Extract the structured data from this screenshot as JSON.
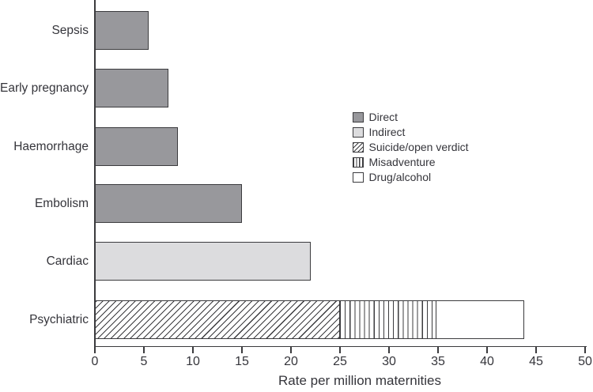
{
  "chart_data": {
    "type": "bar",
    "orientation": "horizontal",
    "stacked": true,
    "title": "",
    "xlabel": "Rate per million maternities",
    "ylabel": "",
    "xlim": [
      0,
      50
    ],
    "xticks": [
      0,
      5,
      10,
      15,
      20,
      25,
      30,
      35,
      40,
      45,
      50
    ],
    "grid": false,
    "legend_position": "middle-right",
    "categories": [
      "Sepsis",
      "Early pregnancy",
      "Haemorrhage",
      "Embolism",
      "Cardiac",
      "Psychiatric"
    ],
    "series": [
      {
        "name": "Direct",
        "pattern": "solid",
        "color": "#98989c",
        "values": [
          5.5,
          7.5,
          8.5,
          15,
          0,
          0
        ]
      },
      {
        "name": "Indirect",
        "pattern": "solid",
        "color": "#dcdcde",
        "values": [
          0,
          0,
          0,
          0,
          22,
          0
        ]
      },
      {
        "name": "Suicide/open verdict",
        "pattern": "diagonal-hatch",
        "color": "#ffffff",
        "values": [
          0,
          0,
          0,
          0,
          0,
          25
        ]
      },
      {
        "name": "Misadventure",
        "pattern": "vertical-stripes",
        "color": "#ffffff",
        "values": [
          0,
          0,
          0,
          0,
          0,
          10
        ]
      },
      {
        "name": "Drug/alcohol",
        "pattern": "plain-white",
        "color": "#ffffff",
        "values": [
          0,
          0,
          0,
          0,
          0,
          9
        ]
      }
    ],
    "category_totals": [
      5.5,
      7.5,
      8.5,
      15,
      22,
      44
    ],
    "axis_color": "#3b3b3e",
    "text_color": "#35353b"
  }
}
